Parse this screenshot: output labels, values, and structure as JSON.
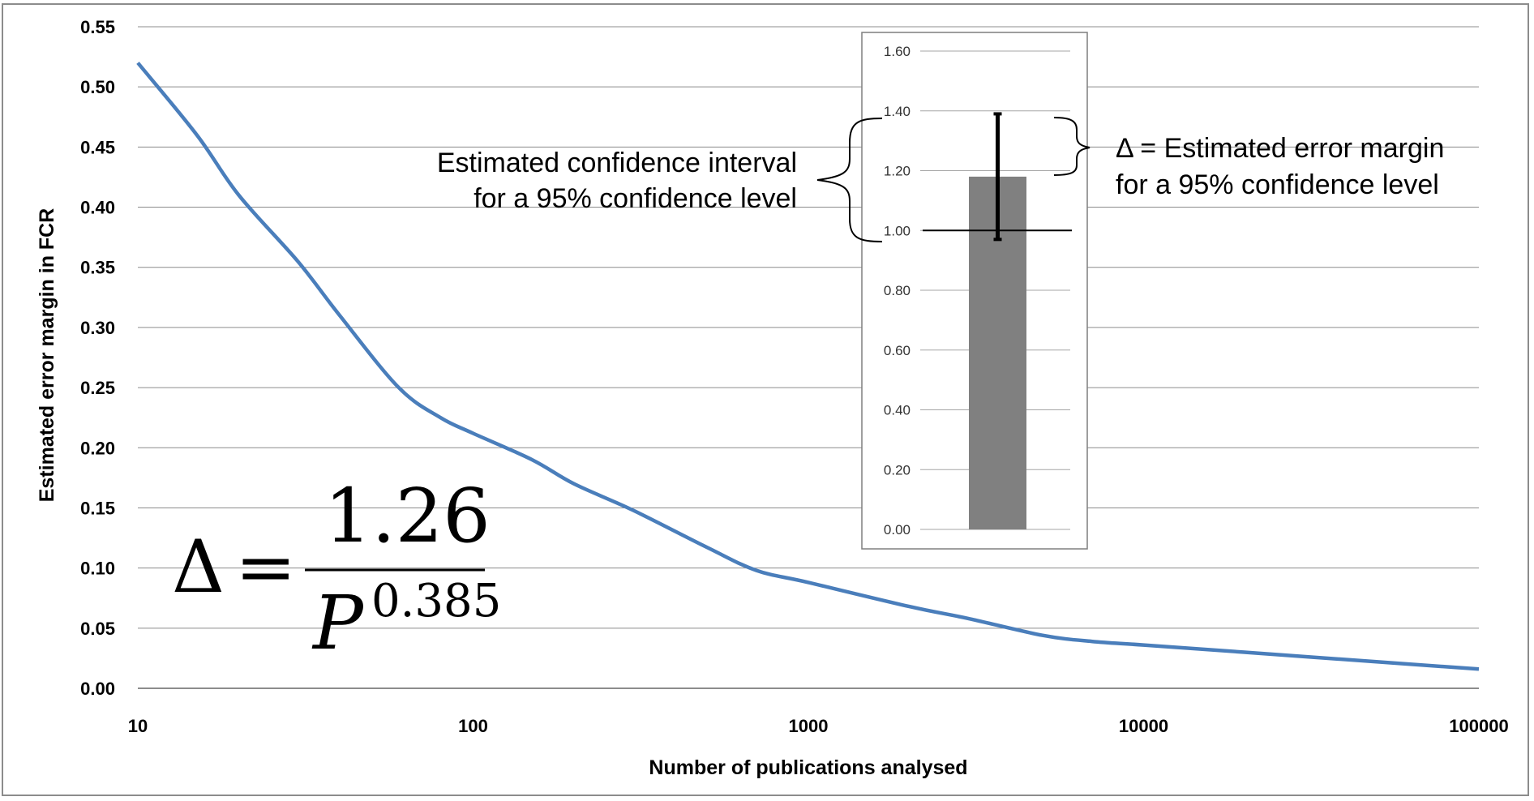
{
  "chart_data": [
    {
      "type": "line",
      "title": "",
      "xlabel": "Number of publications analysed",
      "ylabel": "Estimated error margin in FCR",
      "x_scale": "log",
      "xlim": [
        10,
        100000
      ],
      "ylim": [
        0,
        0.55
      ],
      "x_ticks": [
        "10",
        "100",
        "1000",
        "10000",
        "100000"
      ],
      "y_ticks": [
        "0.00",
        "0.05",
        "0.10",
        "0.15",
        "0.20",
        "0.25",
        "0.30",
        "0.35",
        "0.40",
        "0.45",
        "0.50",
        "0.55"
      ],
      "grid": true,
      "line_color": "#4a7ebb",
      "series": [
        {
          "x": [
            10,
            15,
            20,
            30,
            40,
            60,
            80,
            100,
            150,
            200,
            300,
            500,
            700,
            1000,
            2000,
            3000,
            5000,
            7000,
            10000,
            20000,
            50000,
            100000
          ],
          "y": [
            0.52,
            0.46,
            0.41,
            0.355,
            0.31,
            0.25,
            0.225,
            0.212,
            0.19,
            0.17,
            0.148,
            0.117,
            0.098,
            0.088,
            0.068,
            0.058,
            0.044,
            0.039,
            0.036,
            0.03,
            0.022,
            0.016
          ]
        }
      ]
    },
    {
      "type": "bar",
      "role": "inset",
      "categories": [
        ""
      ],
      "values": [
        1.18
      ],
      "error_low": 0.97,
      "error_high": 1.39,
      "reference_line": 1.0,
      "ylim": [
        0,
        1.6
      ],
      "y_ticks": [
        "0.00",
        "0.20",
        "0.40",
        "0.60",
        "0.80",
        "1.00",
        "1.20",
        "1.40",
        "1.60"
      ],
      "bar_color": "#808080"
    }
  ],
  "annotations": {
    "left_line1": "Estimated confidence interval",
    "left_line2": "for a 95% confidence level",
    "right_line1": "Δ = Estimated error margin",
    "right_line2": "for a 95% confidence level"
  },
  "formula": {
    "lhs": "Δ",
    "equals": "=",
    "numerator": "1.26",
    "base": "P",
    "exponent": "0.385"
  }
}
